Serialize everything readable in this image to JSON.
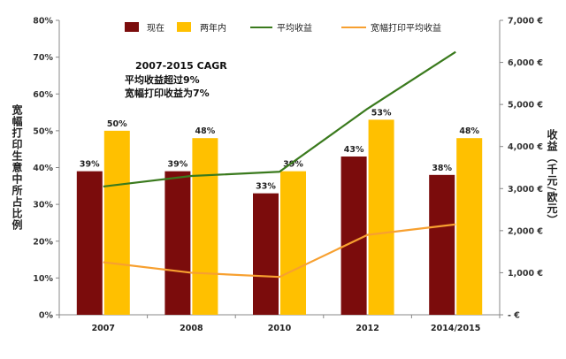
{
  "chart_data": {
    "type": "bar",
    "categories": [
      "2007",
      "2008",
      "2010",
      "2012",
      "2014/2015"
    ],
    "series": [
      {
        "name": "现在",
        "axis": "left",
        "kind": "bar",
        "color": "#7b0c0c",
        "values": [
          39,
          39,
          33,
          43,
          38
        ],
        "labels": [
          "39%",
          "39%",
          "33%",
          "43%",
          "38%"
        ]
      },
      {
        "name": "两年内",
        "axis": "left",
        "kind": "bar",
        "color": "#ffc000",
        "values": [
          50,
          48,
          39,
          53,
          48
        ],
        "labels": [
          "50%",
          "48%",
          "39%",
          "53%",
          "48%"
        ]
      },
      {
        "name": "平均收益",
        "axis": "right",
        "kind": "line",
        "color": "#3a7a1d",
        "values": [
          3050,
          3300,
          3400,
          4900,
          6250
        ]
      },
      {
        "name": "宽幅打印平均收益",
        "axis": "right",
        "kind": "line",
        "color": "#f7a030",
        "values": [
          1250,
          1000,
          900,
          1900,
          2150
        ]
      }
    ],
    "y_left": {
      "label": "宽幅打印生意中所占比例",
      "ylim": [
        0,
        80
      ],
      "ticks": [
        "0%",
        "10%",
        "20%",
        "30%",
        "40%",
        "50%",
        "60%",
        "70%",
        "80%"
      ]
    },
    "y_right": {
      "label": "收益（千元/欧元）",
      "ylim": [
        0,
        7000
      ],
      "ticks": [
        "- €",
        "1,000 €",
        "2,000 €",
        "3,000 €",
        "4,000 €",
        "5,000 €",
        "6,000 €",
        "7,000 €"
      ]
    },
    "annotation": [
      "2007-2015 CAGR",
      "平均收益超过9%",
      "宽幅打印收益为7%"
    ],
    "legend_position": "top"
  }
}
